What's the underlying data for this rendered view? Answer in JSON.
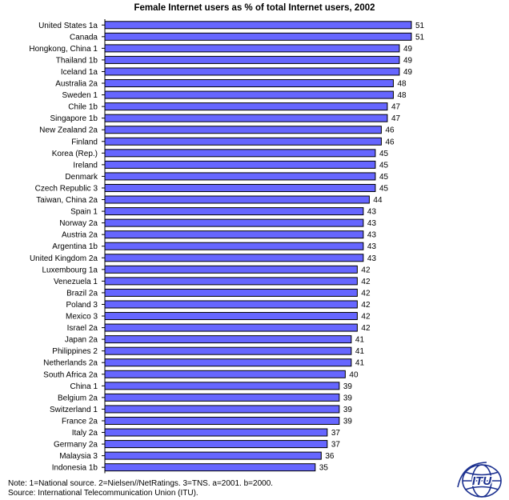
{
  "chart_data": {
    "type": "bar",
    "orientation": "horizontal",
    "title": "Female Internet users as % of total Internet users, 2002",
    "xlabel": "",
    "ylabel": "",
    "xlim": [
      0,
      51
    ],
    "grid": false,
    "legend": "none",
    "bar_color": "#6666ff",
    "categories": [
      "United States 1a",
      "Canada",
      "Hongkong, China 1",
      "Thailand 1b",
      "Iceland 1a",
      "Australia 2a",
      "Sweden 1",
      "Chile 1b",
      "Singapore 1b",
      "New Zealand 2a",
      "Finland",
      "Korea (Rep.)",
      "Ireland",
      "Denmark",
      "Czech Republic 3",
      "Taiwan, China 2a",
      "Spain 1",
      "Norway 2a",
      "Austria 2a",
      "Argentina 1b",
      "United Kingdom 2a",
      "Luxembourg 1a",
      "Venezuela 1",
      "Brazil 2a",
      "Poland 3",
      "Mexico 3",
      "Israel 2a",
      "Japan 2a",
      "Philippines 2",
      "Netherlands 2a",
      "South Africa 2a",
      "China 1",
      "Belgium 2a",
      "Switzerland 1",
      "France 2a",
      "Italy 2a",
      "Germany 2a",
      "Malaysia 3",
      "Indonesia 1b"
    ],
    "values": [
      51,
      51,
      49,
      49,
      49,
      48,
      48,
      47,
      47,
      46,
      46,
      45,
      45,
      45,
      45,
      44,
      43,
      43,
      43,
      43,
      43,
      42,
      42,
      42,
      42,
      42,
      42,
      41,
      41,
      41,
      40,
      39,
      39,
      39,
      39,
      37,
      37,
      36,
      35
    ]
  },
  "note": {
    "line1": "Note: 1=National source. 2=Nielsen//NetRatings. 3=TNS.  a=2001. b=2000.",
    "line2": "Source: International Telecommunication Union (ITU)."
  },
  "logo": {
    "text": "ITU",
    "icon": "itu-globe-logo",
    "color": "#1a2f8f"
  }
}
